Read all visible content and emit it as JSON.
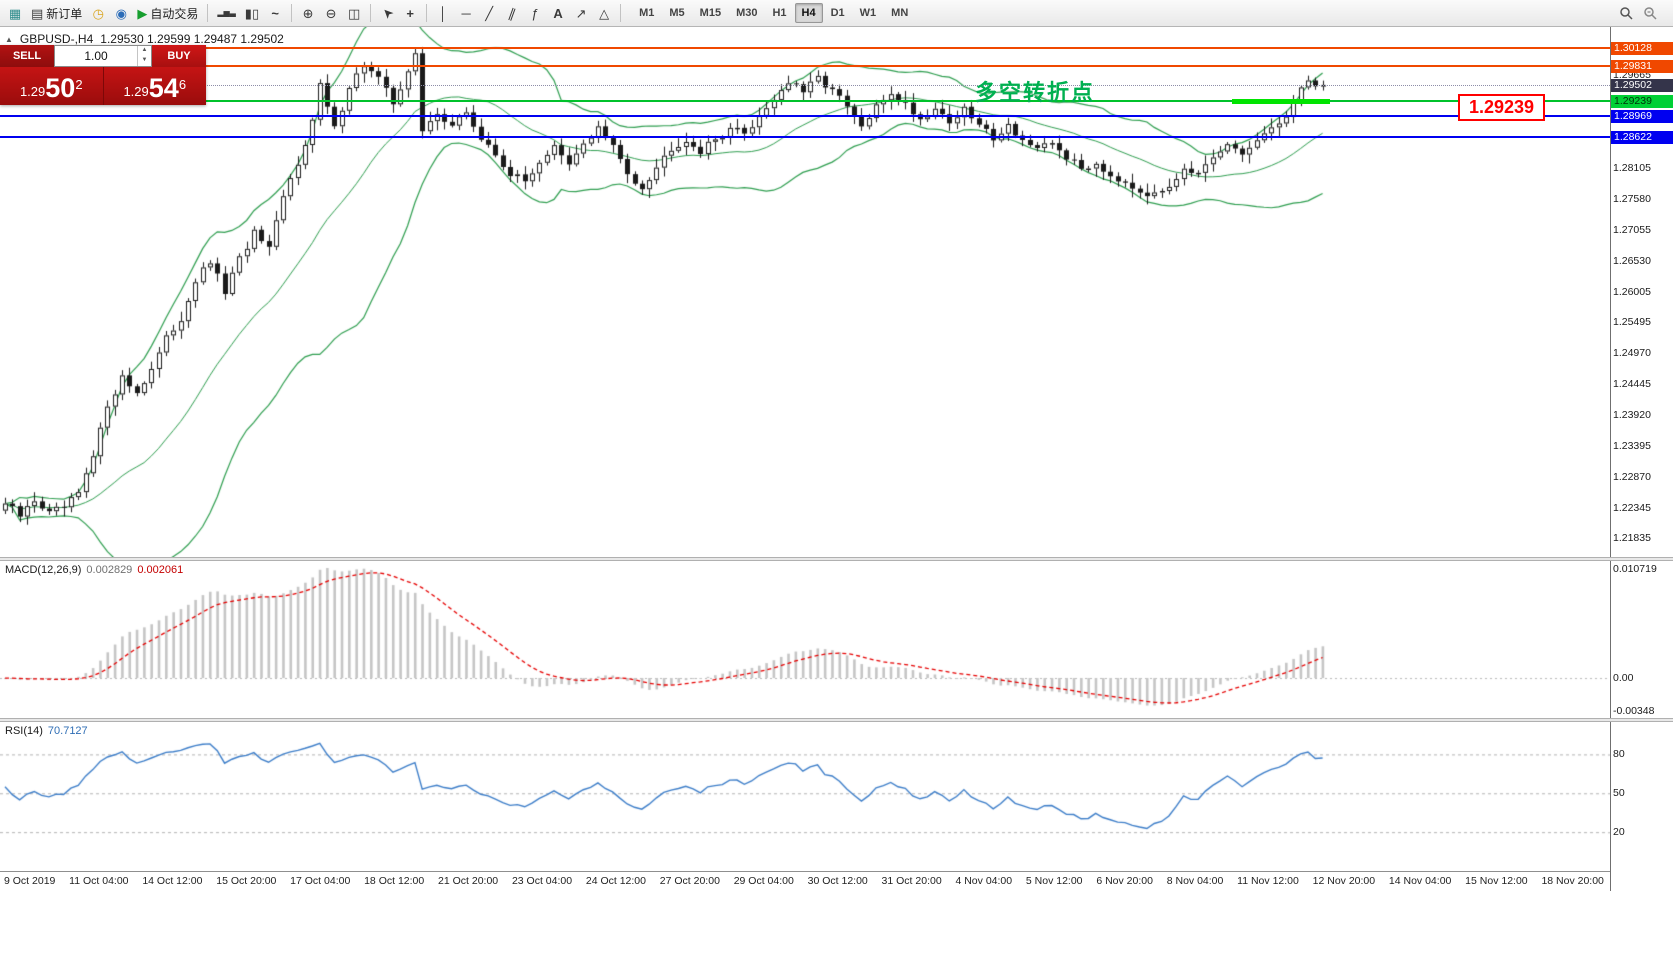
{
  "icons": {
    "collapse": "▲",
    "spinner_up": "▲",
    "spinner_down": "▼",
    "new_chart": "▦",
    "new_order": "▤",
    "market_watch": "◷",
    "navigator": "◉",
    "auto_play": "▶",
    "magnifier": "magnifier-svg"
  },
  "toolbar": {
    "items": [
      {
        "name": "new-chart-icon",
        "cls": "tbtn",
        "glyph": "▦",
        "gcls": "glyph g-teal",
        "inter": "true"
      },
      {
        "name": "new-order-button",
        "cls": "tbtn",
        "glyph": "▤",
        "label": "新订单",
        "gcls": "glyph g-dark",
        "inter": "true"
      },
      {
        "name": "market-watch-icon",
        "cls": "tbtn",
        "glyph": "◷",
        "gcls": "glyph g-gold",
        "inter": "true"
      },
      {
        "name": "navigator-icon",
        "cls": "tbtn",
        "glyph": "◉",
        "gcls": "glyph g-blue",
        "inter": "true"
      },
      {
        "name": "auto-trading-button",
        "cls": "tbtn",
        "glyph": "▶",
        "label": "自动交易",
        "gcls": "glyph g-green",
        "inter": "true"
      },
      {
        "name": "toolbar-separator",
        "cls": "tsep",
        "inter": "false"
      },
      {
        "name": "bar-chart-mode-icon",
        "cls": "tbtn",
        "glyph": "▂▅▃",
        "gcls": "glyph g-dark sm",
        "inter": "true"
      },
      {
        "name": "candlestick-mode-icon",
        "cls": "tbtn",
        "glyph": "▮▯",
        "gcls": "glyph g-dark",
        "inter": "true"
      },
      {
        "name": "line-chart-mode-icon",
        "cls": "tbtn",
        "glyph": "~",
        "gcls": "glyph g-dark bold",
        "inter": "true"
      },
      {
        "name": "toolbar-separator",
        "cls": "tsep",
        "inter": "false"
      },
      {
        "name": "zoom-in-icon",
        "cls": "tbtn",
        "glyph": "⊕",
        "gcls": "glyph g-dark",
        "inter": "true"
      },
      {
        "name": "zoom-out-icon",
        "cls": "tbtn",
        "glyph": "⊖",
        "gcls": "glyph g-dark",
        "inter": "true"
      },
      {
        "name": "tile-windows-icon",
        "cls": "tbtn",
        "glyph": "◫",
        "gcls": "glyph g-dark",
        "inter": "true"
      },
      {
        "name": "toolbar-separator",
        "cls": "tsep",
        "inter": "false"
      },
      {
        "name": "cursor-icon",
        "cls": "tbtn",
        "glyph": "➤",
        "gcls": "glyph g-dark rot",
        "inter": "true"
      },
      {
        "name": "crosshair-icon",
        "cls": "tbtn",
        "glyph": "+",
        "gcls": "glyph g-dark bold",
        "inter": "true"
      },
      {
        "name": "toolbar-separator",
        "cls": "tsep",
        "inter": "false"
      },
      {
        "name": "vertical-line-icon",
        "cls": "tbtn",
        "glyph": "│",
        "gcls": "glyph g-dark",
        "inter": "true"
      },
      {
        "name": "horizontal-line-icon",
        "cls": "tbtn",
        "glyph": "─",
        "gcls": "glyph g-dark",
        "inter": "true"
      },
      {
        "name": "trendline-icon",
        "cls": "tbtn",
        "glyph": "╱",
        "gcls": "glyph g-dark",
        "inter": "true"
      },
      {
        "name": "channel-icon",
        "cls": "tbtn",
        "glyph": "∥",
        "gcls": "glyph g-dark tilt",
        "inter": "true"
      },
      {
        "name": "fibonacci-icon",
        "cls": "tbtn",
        "glyph": "ƒ",
        "gcls": "glyph g-dark",
        "inter": "true"
      },
      {
        "name": "text-tool-icon",
        "cls": "tbtn",
        "glyph": "A",
        "gcls": "glyph g-dark bold",
        "inter": "true"
      },
      {
        "name": "arrow-tool-icon",
        "cls": "tbtn",
        "glyph": "↗",
        "gcls": "glyph g-dark",
        "inter": "true"
      },
      {
        "name": "shapes-tool-icon",
        "cls": "tbtn",
        "glyph": "△",
        "gcls": "glyph g-dark",
        "inter": "true"
      },
      {
        "name": "toolbar-separator",
        "cls": "tsep",
        "inter": "false"
      }
    ],
    "timeframes": [
      {
        "label": "M1",
        "cls": "tfbtn"
      },
      {
        "label": "M5",
        "cls": "tfbtn"
      },
      {
        "label": "M15",
        "cls": "tfbtn"
      },
      {
        "label": "M30",
        "cls": "tfbtn"
      },
      {
        "label": "H1",
        "cls": "tfbtn"
      },
      {
        "label": "H4",
        "cls": "tfbtn active"
      },
      {
        "label": "D1",
        "cls": "tfbtn"
      },
      {
        "label": "W1",
        "cls": "tfbtn"
      },
      {
        "label": "MN",
        "cls": "tfbtn"
      }
    ]
  },
  "chart_header": {
    "symbol_period": "GBPUSD-,H4",
    "ohlc": "1.29530 1.29599 1.29487 1.29502"
  },
  "trade_panel": {
    "sell_label": "SELL",
    "buy_label": "BUY",
    "volume": "1.00",
    "sell_price": {
      "prefix": "1.29",
      "big": "50",
      "sup": "2"
    },
    "buy_price": {
      "prefix": "1.29",
      "big": "54",
      "sup": "6"
    }
  },
  "annotation": {
    "text": "多空转折点",
    "color": "#00b050"
  },
  "callout": {
    "text": "1.29239",
    "color": "#ff0000"
  },
  "levels": [
    {
      "name": "resistance-line-1",
      "price": 1.30128,
      "display": "1.30128",
      "color": "#f04800",
      "label_bg": "#f04800",
      "label_color": "#ffffff",
      "thickness": 2
    },
    {
      "name": "resistance-line-2",
      "price": 1.29831,
      "display": "1.29831",
      "color": "#f04800",
      "label_bg": "#f04800",
      "label_color": "#ffffff",
      "thickness": 2
    },
    {
      "name": "pivot-support-line",
      "price": 1.29239,
      "display": "1.29239",
      "color": "#00c22b",
      "label_bg": "#00d035",
      "label_color": "#00320a",
      "thickness": 2
    },
    {
      "name": "support-line-1",
      "price": 1.28969,
      "display": "1.28969",
      "color": "#0000f0",
      "label_bg": "#0000f0",
      "label_color": "#ffffff",
      "thickness": 2
    },
    {
      "name": "support-line-2",
      "price": 1.28622,
      "display": "1.28622",
      "color": "#0000f0",
      "label_bg": "#0000f0",
      "label_color": "#ffffff",
      "thickness": 2
    }
  ],
  "current_price": {
    "price": 1.29502,
    "display": "1.29502",
    "label_bg": "#34344a",
    "label_color": "#ffffff"
  },
  "price_axis": {
    "grid_labels": [
      "1.29665",
      "1.28105",
      "1.27580",
      "1.27055",
      "1.26530",
      "1.26005",
      "1.25495",
      "1.24970",
      "1.24445",
      "1.23920",
      "1.23395",
      "1.22870",
      "1.22345",
      "1.21835"
    ]
  },
  "macd": {
    "name": "MACD(12,26,9)",
    "value_main": "0.002829",
    "value_signal": "0.002061",
    "axis_top": "0.010719",
    "axis_zero": "0.00",
    "axis_bottom": "-0.00348"
  },
  "rsi": {
    "name": "RSI(14)",
    "value": "70.7127",
    "levels": [
      {
        "value": 80,
        "label": "80"
      },
      {
        "value": 50,
        "label": "50"
      },
      {
        "value": 20,
        "label": "20"
      }
    ]
  },
  "chart_data": {
    "type": "candlestick",
    "symbol": "GBPUSD-",
    "timeframe": "H4",
    "current_ohlc": {
      "open": 1.2953,
      "high": 1.29599,
      "low": 1.29487,
      "close": 1.29502
    },
    "bid": 1.29502,
    "ask": 1.29546,
    "candle_count": 181,
    "last_close": 1.29502,
    "y_axis": {
      "min": 1.2157,
      "max": 1.30485
    },
    "horizontal_levels": [
      1.30128,
      1.29831,
      1.29239,
      1.28969,
      1.28622
    ],
    "price_path_anchors": [
      [
        0,
        1.2242
      ],
      [
        2,
        1.222
      ],
      [
        4,
        1.2248
      ],
      [
        6,
        1.2225
      ],
      [
        8,
        1.2235
      ],
      [
        10,
        1.2258
      ],
      [
        12,
        1.232
      ],
      [
        14,
        1.241
      ],
      [
        16,
        1.2455
      ],
      [
        18,
        1.243
      ],
      [
        20,
        1.247
      ],
      [
        22,
        1.252
      ],
      [
        24,
        1.2555
      ],
      [
        26,
        1.262
      ],
      [
        28,
        1.265
      ],
      [
        30,
        1.26
      ],
      [
        32,
        1.2655
      ],
      [
        34,
        1.27
      ],
      [
        36,
        1.267
      ],
      [
        38,
        1.276
      ],
      [
        40,
        1.282
      ],
      [
        42,
        1.289
      ],
      [
        43,
        1.295
      ],
      [
        45,
        1.2875
      ],
      [
        47,
        1.295
      ],
      [
        49,
        1.2985
      ],
      [
        51,
        1.296
      ],
      [
        53,
        1.292
      ],
      [
        55,
        1.2975
      ],
      [
        56,
        1.3
      ],
      [
        57,
        1.287
      ],
      [
        59,
        1.2905
      ],
      [
        61,
        1.288
      ],
      [
        63,
        1.2905
      ],
      [
        65,
        1.2858
      ],
      [
        67,
        1.2832
      ],
      [
        69,
        1.28
      ],
      [
        71,
        1.2786
      ],
      [
        73,
        1.2822
      ],
      [
        75,
        1.2845
      ],
      [
        77,
        1.2812
      ],
      [
        79,
        1.2852
      ],
      [
        81,
        1.2878
      ],
      [
        83,
        1.2845
      ],
      [
        85,
        1.28
      ],
      [
        87,
        1.2778
      ],
      [
        89,
        1.2812
      ],
      [
        91,
        1.2845
      ],
      [
        93,
        1.2858
      ],
      [
        95,
        1.2838
      ],
      [
        97,
        1.2858
      ],
      [
        99,
        1.2878
      ],
      [
        101,
        1.2868
      ],
      [
        103,
        1.2898
      ],
      [
        105,
        1.2928
      ],
      [
        107,
        1.2955
      ],
      [
        109,
        1.2938
      ],
      [
        111,
        1.2962
      ],
      [
        113,
        1.2942
      ],
      [
        115,
        1.2912
      ],
      [
        117,
        1.2878
      ],
      [
        119,
        1.2912
      ],
      [
        121,
        1.2938
      ],
      [
        123,
        1.2918
      ],
      [
        125,
        1.2892
      ],
      [
        127,
        1.2912
      ],
      [
        129,
        1.2888
      ],
      [
        131,
        1.2908
      ],
      [
        133,
        1.2882
      ],
      [
        135,
        1.2862
      ],
      [
        137,
        1.2882
      ],
      [
        139,
        1.2858
      ],
      [
        141,
        1.2838
      ],
      [
        143,
        1.2852
      ],
      [
        145,
        1.2828
      ],
      [
        147,
        1.2808
      ],
      [
        149,
        1.2818
      ],
      [
        151,
        1.2798
      ],
      [
        153,
        1.2788
      ],
      [
        155,
        1.2772
      ],
      [
        157,
        1.2762
      ],
      [
        159,
        1.2782
      ],
      [
        161,
        1.2812
      ],
      [
        163,
        1.2798
      ],
      [
        165,
        1.2822
      ],
      [
        167,
        1.2848
      ],
      [
        169,
        1.2832
      ],
      [
        171,
        1.2858
      ],
      [
        173,
        1.2872
      ],
      [
        175,
        1.2902
      ],
      [
        177,
        1.2942
      ],
      [
        178,
        1.2962
      ],
      [
        179,
        1.2948
      ],
      [
        180,
        1.29502
      ]
    ],
    "x_axis_labels": [
      "9 Oct 2019",
      "11 Oct 04:00",
      "14 Oct 12:00",
      "15 Oct 20:00",
      "17 Oct 04:00",
      "18 Oct 12:00",
      "21 Oct 20:00",
      "23 Oct 04:00",
      "24 Oct 12:00",
      "27 Oct 20:00",
      "29 Oct 04:00",
      "30 Oct 12:00",
      "31 Oct 20:00",
      "4 Nov 04:00",
      "5 Nov 12:00",
      "6 Nov 20:00",
      "8 Nov 04:00",
      "11 Nov 12:00",
      "12 Nov 20:00",
      "14 Nov 04:00",
      "15 Nov 12:00",
      "18 Nov 20:00"
    ],
    "indicators": [
      {
        "name": "Bollinger Bands",
        "period": 20,
        "deviation": 2,
        "color": "#2e9e4f"
      },
      {
        "name": "MACD",
        "fast": 12,
        "slow": 26,
        "signal": 9,
        "value_main": 0.002829,
        "value_signal": 0.002061,
        "histogram_color": "#c6c6c6",
        "signal_color": "#e60000"
      },
      {
        "name": "RSI",
        "period": 14,
        "value": 70.7127,
        "color": "#3d7ec9",
        "levels": [
          80,
          50,
          20
        ]
      }
    ]
  }
}
